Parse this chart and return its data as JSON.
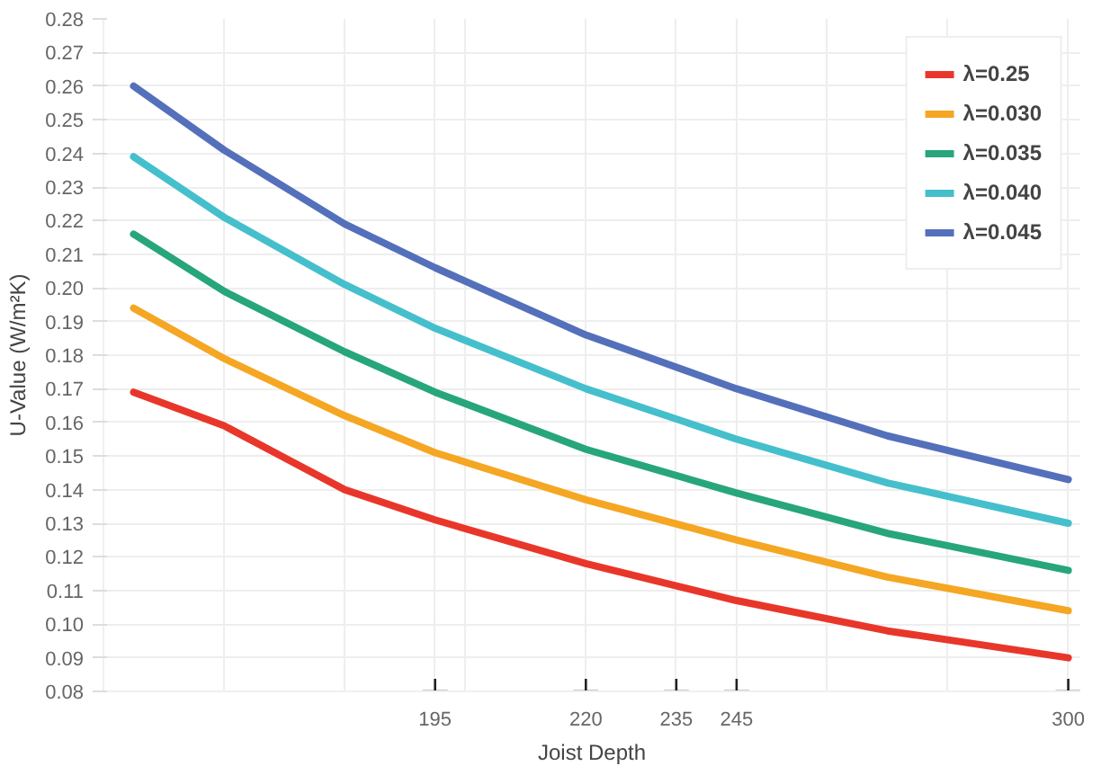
{
  "chart_data": {
    "type": "line",
    "xlabel": "Joist Depth",
    "ylabel": "U-Value (W/m²K)",
    "x": [
      145,
      160,
      180,
      195,
      220,
      245,
      270,
      300
    ],
    "series": [
      {
        "name": "λ=0.25",
        "color": "#e8372a",
        "values": [
          0.169,
          0.159,
          0.14,
          0.131,
          0.118,
          0.107,
          0.098,
          0.09
        ]
      },
      {
        "name": "λ=0.030",
        "color": "#f5a623",
        "values": [
          0.194,
          0.179,
          0.162,
          0.151,
          0.137,
          0.125,
          0.114,
          0.104
        ]
      },
      {
        "name": "λ=0.035",
        "color": "#27a67a",
        "values": [
          0.216,
          0.199,
          0.181,
          0.169,
          0.152,
          0.139,
          0.127,
          0.116
        ]
      },
      {
        "name": "λ=0.040",
        "color": "#45bfcc",
        "values": [
          0.239,
          0.221,
          0.201,
          0.188,
          0.17,
          0.155,
          0.142,
          0.13
        ]
      },
      {
        "name": "λ=0.045",
        "color": "#5470bb",
        "values": [
          0.26,
          0.241,
          0.219,
          0.206,
          0.186,
          0.17,
          0.156,
          0.143
        ]
      }
    ],
    "xlim": [
      140,
      302
    ],
    "xticks": [
      {
        "value": 140,
        "label": null
      },
      {
        "value": 160,
        "label": null
      },
      {
        "value": 180,
        "label": null
      },
      195,
      {
        "value": 200,
        "label": null
      },
      220,
      235,
      245,
      {
        "value": 260,
        "label": null
      },
      {
        "value": 280,
        "label": null
      },
      300
    ],
    "ylim": [
      0.08,
      0.28
    ],
    "yticks": [
      {
        "value": 0.08,
        "label": "0.08"
      },
      {
        "value": 0.09,
        "label": "0.09"
      },
      {
        "value": 0.1,
        "label": "0.10"
      },
      {
        "value": 0.11,
        "label": "0.11"
      },
      {
        "value": 0.12,
        "label": "0.12"
      },
      {
        "value": 0.13,
        "label": "0.13"
      },
      {
        "value": 0.14,
        "label": "0.14"
      },
      {
        "value": 0.15,
        "label": "0.15"
      },
      {
        "value": 0.16,
        "label": "0.16"
      },
      {
        "value": 0.17,
        "label": "0.17"
      },
      {
        "value": 0.18,
        "label": "0.18"
      },
      {
        "value": 0.19,
        "label": "0.19"
      },
      {
        "value": 0.2,
        "label": "0.20"
      },
      {
        "value": 0.21,
        "label": "0.21"
      },
      {
        "value": 0.22,
        "label": "0.22"
      },
      {
        "value": 0.23,
        "label": "0.23"
      },
      {
        "value": 0.24,
        "label": "0.24"
      },
      {
        "value": 0.25,
        "label": "0.25"
      },
      {
        "value": 0.26,
        "label": "0.26"
      },
      {
        "value": 0.27,
        "label": "0.27"
      },
      {
        "value": 0.28,
        "label": "0.28"
      }
    ],
    "grid": true,
    "legend": "top right",
    "line_style": "solid"
  }
}
